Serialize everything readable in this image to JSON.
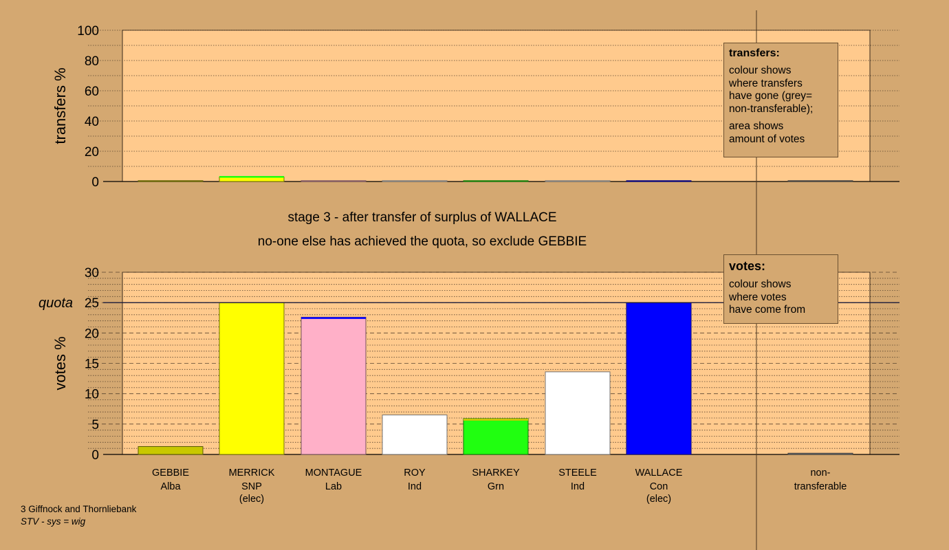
{
  "chart_data": [
    {
      "type": "bar",
      "ylabel": "transfers %",
      "ylim": [
        0,
        100
      ],
      "yticks": [
        0,
        20,
        40,
        60,
        80,
        100
      ],
      "categories": [
        "GEBBIE",
        "MERRICK",
        "MONTAGUE",
        "ROY",
        "SHARKEY",
        "STEELE",
        "WALLACE",
        "non-transferable"
      ],
      "values": [
        0,
        3,
        0,
        0,
        0,
        0,
        0.5,
        0
      ],
      "colors": [
        "#c8c800",
        "#ffff00",
        "#ffb0c8",
        "#ffffff",
        "#20ff10",
        "#ffffff",
        "#0000ff",
        "#808080"
      ],
      "grid": true
    },
    {
      "type": "bar",
      "ylabel": "votes %",
      "ylim": [
        0,
        30
      ],
      "yticks": [
        0,
        5,
        10,
        15,
        20,
        25,
        30
      ],
      "quota": 25,
      "quota_label": "quota",
      "categories": [
        "GEBBIE",
        "MERRICK",
        "MONTAGUE",
        "ROY",
        "SHARKEY",
        "STEELE",
        "WALLACE",
        "non-transferable"
      ],
      "values": [
        1.3,
        25,
        22.6,
        6.5,
        5.9,
        13.6,
        25,
        0.2
      ],
      "colors": [
        "#c8c800",
        "#ffff00",
        "#ffb0c8",
        "#ffffff",
        "#20ff10",
        "#ffffff",
        "#0000ff",
        "#808080"
      ],
      "grid": true
    }
  ],
  "headline": {
    "line1": "stage 3 - after transfer of surplus of WALLACE",
    "line2": "no-one else has achieved the quota, so exclude GEBBIE"
  },
  "candidates": [
    {
      "name": "GEBBIE",
      "party": "Alba",
      "note": ""
    },
    {
      "name": "MERRICK",
      "party": "SNP",
      "note": "(elec)"
    },
    {
      "name": "MONTAGUE",
      "party": "Lab",
      "note": ""
    },
    {
      "name": "ROY",
      "party": "Ind",
      "note": ""
    },
    {
      "name": "SHARKEY",
      "party": "Grn",
      "note": ""
    },
    {
      "name": "STEELE",
      "party": "Ind",
      "note": ""
    },
    {
      "name": "WALLACE",
      "party": "Con",
      "note": "(elec)"
    }
  ],
  "nontransferable": {
    "line1": "non-",
    "line2": "transferable"
  },
  "legend_transfers": {
    "title": "transfers:",
    "lines_a": [
      "colour shows",
      "where transfers",
      "have gone (grey=",
      "non-transferable);"
    ],
    "lines_b": [
      "area shows",
      "amount of votes"
    ]
  },
  "legend_votes": {
    "title": "votes:",
    "lines": [
      "colour shows",
      "where votes",
      "have come from"
    ]
  },
  "footer": {
    "ward": "3 Giffnock and Thornliebank",
    "system": "STV - sys = wig"
  }
}
